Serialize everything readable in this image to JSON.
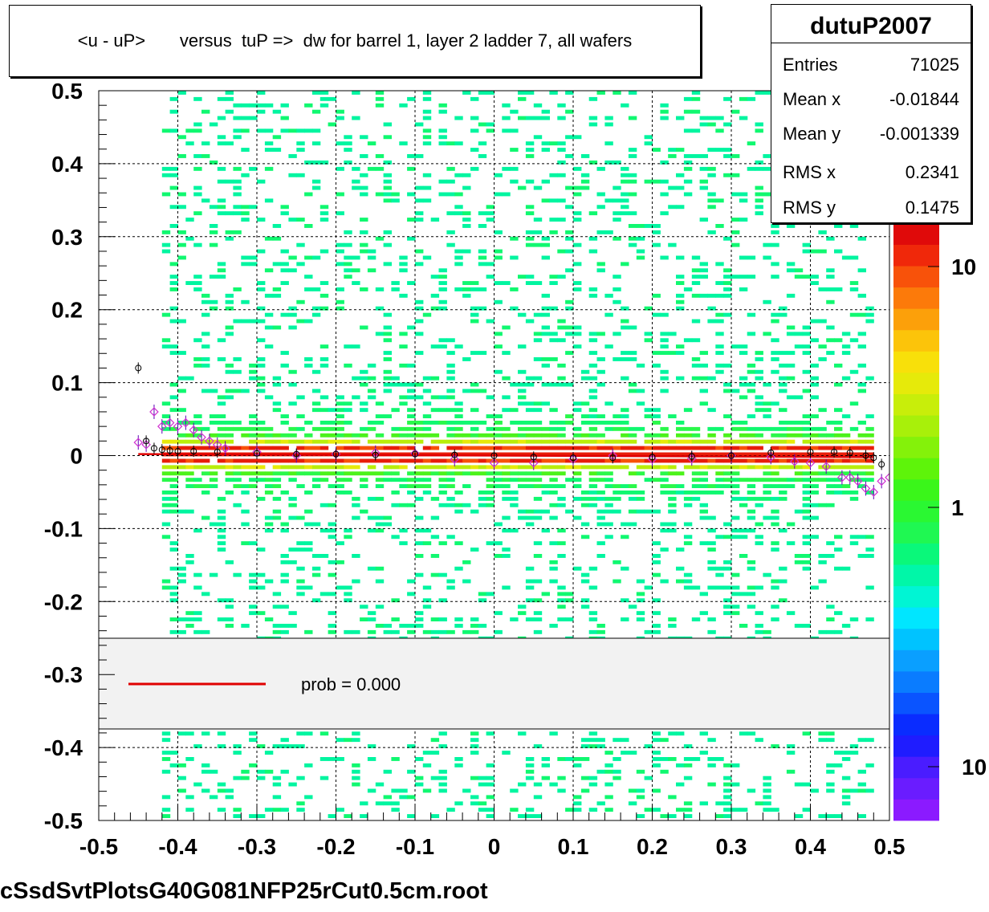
{
  "title": "<u - uP>       versus  tuP =>  dw for barrel 1, layer 2 ladder 7, all wafers",
  "stats": {
    "name": "dutuP2007",
    "rows": [
      {
        "label": "Entries",
        "value": "71025"
      },
      {
        "label": "Mean x",
        "value": "-0.01844"
      },
      {
        "label": "Mean y",
        "value": "-0.001339"
      },
      {
        "label": "RMS x",
        "value": "0.2341"
      },
      {
        "label": "RMS y",
        "value": "0.1475"
      }
    ]
  },
  "legend": {
    "label": "prob = 0.000",
    "line_color": "#e00000"
  },
  "footer": "cSsdSvtPlotsG40G081NFP25rCut0.5cm.root",
  "colorbar": {
    "tick_labels": [
      "10",
      "1",
      "10"
    ],
    "colors": [
      "#8b1aff",
      "#6a1cff",
      "#4a1cff",
      "#1f1cff",
      "#0a2cff",
      "#0a54ff",
      "#0a7cff",
      "#0a9fff",
      "#00c3ff",
      "#00e6ff",
      "#00f5d4",
      "#00f7a8",
      "#0af87a",
      "#1ff852",
      "#2af832",
      "#3af61a",
      "#5ef40a",
      "#84f20a",
      "#a8f00a",
      "#c8ee0a",
      "#e6ea0a",
      "#f8e00a",
      "#fcc40a",
      "#fca00a",
      "#fc7a0a",
      "#f8520a",
      "#f0280a",
      "#e00a0a"
    ]
  },
  "chart_data": {
    "type": "heatmap",
    "title": "<u - uP>       versus  tuP =>  dw for barrel 1, layer 2 ladder 7, all wafers",
    "xlabel": "",
    "ylabel": "",
    "xlim": [
      -0.5,
      0.5
    ],
    "ylim": [
      -0.5,
      0.5
    ],
    "x_ticks": [
      "-0.5",
      "-0.4",
      "-0.3",
      "-0.2",
      "-0.1",
      "0",
      "0.1",
      "0.2",
      "0.3",
      "0.4",
      "0.5"
    ],
    "y_ticks": [
      "0.5",
      "0.4",
      "0.3",
      "0.2",
      "0.1",
      "0",
      "-0.1",
      "-0.2",
      "-0.3",
      "-0.4",
      "-0.5"
    ],
    "grid": true,
    "occupied_x_range": [
      -0.42,
      0.48
    ],
    "band_center": 0.0,
    "fit_line": {
      "color": "#e00000",
      "x": [
        -0.45,
        0.48
      ],
      "y": [
        0.002,
        -0.002
      ]
    },
    "profile_black": {
      "x": [
        -0.45,
        -0.44,
        -0.43,
        -0.42,
        -0.41,
        -0.4,
        -0.38,
        -0.35,
        -0.3,
        -0.25,
        -0.2,
        -0.15,
        -0.1,
        -0.05,
        0.0,
        0.05,
        0.1,
        0.15,
        0.2,
        0.25,
        0.3,
        0.35,
        0.4,
        0.43,
        0.45,
        0.47,
        0.48,
        0.49
      ],
      "y": [
        0.12,
        0.02,
        0.01,
        0.008,
        0.007,
        0.006,
        0.006,
        0.005,
        0.003,
        0.002,
        0.002,
        0.001,
        0.002,
        0.001,
        0.0,
        -0.002,
        -0.003,
        -0.003,
        -0.002,
        -0.001,
        0.0,
        0.004,
        0.005,
        0.005,
        0.004,
        0.0,
        -0.003,
        -0.012
      ]
    },
    "profile_magenta": {
      "x": [
        -0.45,
        -0.44,
        -0.43,
        -0.42,
        -0.41,
        -0.4,
        -0.39,
        -0.38,
        -0.37,
        -0.36,
        -0.35,
        -0.34,
        -0.3,
        -0.25,
        -0.2,
        -0.15,
        -0.1,
        -0.05,
        0.0,
        0.05,
        0.1,
        0.15,
        0.2,
        0.25,
        0.3,
        0.35,
        0.38,
        0.4,
        0.42,
        0.44,
        0.45,
        0.46,
        0.47,
        0.48,
        0.49,
        0.5
      ],
      "y": [
        0.018,
        0.015,
        0.06,
        0.04,
        0.045,
        0.04,
        0.045,
        0.035,
        0.025,
        0.02,
        0.015,
        0.01,
        0.005,
        0.0,
        0.002,
        0.004,
        0.003,
        -0.005,
        -0.01,
        -0.01,
        -0.005,
        0.0,
        -0.005,
        -0.004,
        0.0,
        -0.002,
        -0.008,
        -0.01,
        -0.015,
        -0.03,
        -0.03,
        -0.035,
        -0.045,
        -0.05,
        -0.035,
        -0.03
      ]
    }
  }
}
